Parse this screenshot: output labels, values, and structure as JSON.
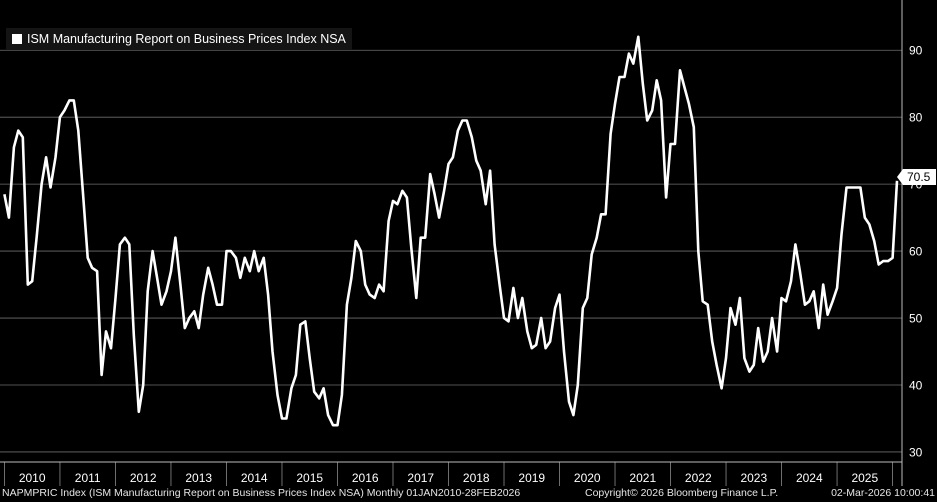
{
  "chart_data": {
    "type": "line",
    "title": "ISM Manufacturing Report on Business Prices Index NSA",
    "series_name": "ISM Manufacturing Report on Business Prices Index NSA",
    "xlabel": "",
    "ylabel": "",
    "ylim": [
      28.5,
      97.5
    ],
    "y_ticks": [
      30,
      40,
      50,
      60,
      70,
      80,
      90
    ],
    "x_tick_labels": [
      "2010",
      "2011",
      "2012",
      "2013",
      "2014",
      "2015",
      "2016",
      "2017",
      "2018",
      "2019",
      "2020",
      "2021",
      "2022",
      "2023",
      "2024",
      "2025"
    ],
    "x_start": 2010.0,
    "x_end": 2026.2,
    "last_value_label": "70.5",
    "line_color": "#ffffff",
    "grid": true,
    "points": [
      [
        2010.0,
        68.5
      ],
      [
        2010.08,
        65.0
      ],
      [
        2010.17,
        75.5
      ],
      [
        2010.25,
        78.0
      ],
      [
        2010.33,
        77.0
      ],
      [
        2010.42,
        55.0
      ],
      [
        2010.5,
        55.5
      ],
      [
        2010.58,
        62.0
      ],
      [
        2010.67,
        70.0
      ],
      [
        2010.75,
        74.0
      ],
      [
        2010.83,
        69.5
      ],
      [
        2010.92,
        74.0
      ],
      [
        2011.0,
        80.0
      ],
      [
        2011.08,
        81.0
      ],
      [
        2011.17,
        82.5
      ],
      [
        2011.25,
        82.5
      ],
      [
        2011.33,
        78.0
      ],
      [
        2011.42,
        68.0
      ],
      [
        2011.5,
        59.0
      ],
      [
        2011.58,
        57.5
      ],
      [
        2011.67,
        57.0
      ],
      [
        2011.75,
        41.5
      ],
      [
        2011.83,
        48.0
      ],
      [
        2011.92,
        45.5
      ],
      [
        2012.0,
        53.0
      ],
      [
        2012.08,
        61.0
      ],
      [
        2012.17,
        62.0
      ],
      [
        2012.25,
        61.0
      ],
      [
        2012.33,
        47.5
      ],
      [
        2012.42,
        36.0
      ],
      [
        2012.5,
        40.0
      ],
      [
        2012.58,
        54.0
      ],
      [
        2012.67,
        60.0
      ],
      [
        2012.75,
        56.0
      ],
      [
        2012.83,
        52.0
      ],
      [
        2012.92,
        54.0
      ],
      [
        2013.0,
        57.0
      ],
      [
        2013.08,
        62.0
      ],
      [
        2013.17,
        55.0
      ],
      [
        2013.25,
        48.5
      ],
      [
        2013.33,
        50.0
      ],
      [
        2013.42,
        51.0
      ],
      [
        2013.5,
        48.5
      ],
      [
        2013.58,
        53.5
      ],
      [
        2013.67,
        57.5
      ],
      [
        2013.75,
        55.0
      ],
      [
        2013.83,
        52.0
      ],
      [
        2013.92,
        52.0
      ],
      [
        2014.0,
        60.0
      ],
      [
        2014.08,
        60.0
      ],
      [
        2014.17,
        59.0
      ],
      [
        2014.25,
        56.0
      ],
      [
        2014.33,
        59.0
      ],
      [
        2014.42,
        57.0
      ],
      [
        2014.5,
        60.0
      ],
      [
        2014.58,
        57.0
      ],
      [
        2014.67,
        59.0
      ],
      [
        2014.75,
        53.5
      ],
      [
        2014.83,
        45.0
      ],
      [
        2014.92,
        38.5
      ],
      [
        2015.0,
        35.0
      ],
      [
        2015.08,
        35.0
      ],
      [
        2015.17,
        39.5
      ],
      [
        2015.25,
        41.5
      ],
      [
        2015.33,
        49.0
      ],
      [
        2015.42,
        49.5
      ],
      [
        2015.5,
        44.0
      ],
      [
        2015.58,
        39.0
      ],
      [
        2015.67,
        38.0
      ],
      [
        2015.75,
        39.5
      ],
      [
        2015.83,
        35.5
      ],
      [
        2015.92,
        34.0
      ],
      [
        2016.0,
        34.0
      ],
      [
        2016.08,
        38.5
      ],
      [
        2016.17,
        52.0
      ],
      [
        2016.25,
        56.0
      ],
      [
        2016.33,
        61.5
      ],
      [
        2016.42,
        60.0
      ],
      [
        2016.5,
        55.0
      ],
      [
        2016.58,
        53.5
      ],
      [
        2016.67,
        53.0
      ],
      [
        2016.75,
        55.0
      ],
      [
        2016.83,
        54.0
      ],
      [
        2016.92,
        64.5
      ],
      [
        2017.0,
        67.5
      ],
      [
        2017.08,
        67.0
      ],
      [
        2017.17,
        69.0
      ],
      [
        2017.25,
        68.0
      ],
      [
        2017.33,
        60.5
      ],
      [
        2017.42,
        53.0
      ],
      [
        2017.5,
        62.0
      ],
      [
        2017.58,
        62.0
      ],
      [
        2017.67,
        71.5
      ],
      [
        2017.75,
        68.5
      ],
      [
        2017.83,
        65.0
      ],
      [
        2017.92,
        69.0
      ],
      [
        2018.0,
        73.0
      ],
      [
        2018.08,
        74.0
      ],
      [
        2018.17,
        78.0
      ],
      [
        2018.25,
        79.5
      ],
      [
        2018.33,
        79.5
      ],
      [
        2018.42,
        77.0
      ],
      [
        2018.5,
        73.5
      ],
      [
        2018.58,
        72.0
      ],
      [
        2018.67,
        67.0
      ],
      [
        2018.75,
        72.0
      ],
      [
        2018.83,
        61.0
      ],
      [
        2018.92,
        55.0
      ],
      [
        2019.0,
        50.0
      ],
      [
        2019.08,
        49.5
      ],
      [
        2019.17,
        54.5
      ],
      [
        2019.25,
        50.0
      ],
      [
        2019.33,
        53.0
      ],
      [
        2019.42,
        48.0
      ],
      [
        2019.5,
        45.5
      ],
      [
        2019.58,
        46.0
      ],
      [
        2019.67,
        50.0
      ],
      [
        2019.75,
        45.5
      ],
      [
        2019.83,
        46.5
      ],
      [
        2019.92,
        51.5
      ],
      [
        2020.0,
        53.5
      ],
      [
        2020.08,
        45.0
      ],
      [
        2020.17,
        37.5
      ],
      [
        2020.25,
        35.5
      ],
      [
        2020.33,
        40.0
      ],
      [
        2020.42,
        51.5
      ],
      [
        2020.5,
        53.0
      ],
      [
        2020.58,
        59.5
      ],
      [
        2020.67,
        62.0
      ],
      [
        2020.75,
        65.5
      ],
      [
        2020.83,
        65.5
      ],
      [
        2020.92,
        77.5
      ],
      [
        2021.0,
        82.0
      ],
      [
        2021.08,
        86.0
      ],
      [
        2021.17,
        86.0
      ],
      [
        2021.25,
        89.5
      ],
      [
        2021.33,
        88.0
      ],
      [
        2021.42,
        92.0
      ],
      [
        2021.5,
        85.0
      ],
      [
        2021.58,
        79.5
      ],
      [
        2021.67,
        81.0
      ],
      [
        2021.75,
        85.5
      ],
      [
        2021.83,
        82.5
      ],
      [
        2021.92,
        68.0
      ],
      [
        2022.0,
        76.0
      ],
      [
        2022.08,
        76.0
      ],
      [
        2022.17,
        87.0
      ],
      [
        2022.25,
        84.5
      ],
      [
        2022.33,
        82.0
      ],
      [
        2022.42,
        78.5
      ],
      [
        2022.5,
        60.0
      ],
      [
        2022.58,
        52.5
      ],
      [
        2022.67,
        52.0
      ],
      [
        2022.75,
        46.5
      ],
      [
        2022.83,
        43.0
      ],
      [
        2022.92,
        39.5
      ],
      [
        2023.0,
        44.0
      ],
      [
        2023.08,
        51.5
      ],
      [
        2023.17,
        49.0
      ],
      [
        2023.25,
        53.0
      ],
      [
        2023.33,
        44.0
      ],
      [
        2023.42,
        42.0
      ],
      [
        2023.5,
        43.0
      ],
      [
        2023.58,
        48.5
      ],
      [
        2023.67,
        43.5
      ],
      [
        2023.75,
        45.0
      ],
      [
        2023.83,
        50.0
      ],
      [
        2023.92,
        45.0
      ],
      [
        2024.0,
        53.0
      ],
      [
        2024.08,
        52.5
      ],
      [
        2024.17,
        55.5
      ],
      [
        2024.25,
        61.0
      ],
      [
        2024.33,
        57.0
      ],
      [
        2024.42,
        52.0
      ],
      [
        2024.5,
        52.5
      ],
      [
        2024.58,
        54.0
      ],
      [
        2024.67,
        48.5
      ],
      [
        2024.75,
        55.0
      ],
      [
        2024.83,
        50.5
      ],
      [
        2024.92,
        52.5
      ],
      [
        2025.0,
        54.5
      ],
      [
        2025.08,
        62.5
      ],
      [
        2025.17,
        69.5
      ],
      [
        2025.25,
        69.5
      ],
      [
        2025.33,
        69.5
      ],
      [
        2025.42,
        69.5
      ],
      [
        2025.5,
        65.0
      ],
      [
        2025.58,
        64.0
      ],
      [
        2025.67,
        61.5
      ],
      [
        2025.75,
        58.0
      ],
      [
        2025.83,
        58.5
      ],
      [
        2025.92,
        58.5
      ],
      [
        2026.0,
        59.0
      ],
      [
        2026.08,
        70.5
      ]
    ]
  },
  "footer": {
    "source": "NAPMPRIC Index (ISM Manufacturing Report on Business Prices Index NSA) Monthly 01JAN2010-28FEB2026",
    "copyright": "Copyright© 2026 Bloomberg Finance L.P.",
    "timestamp": "02-Mar-2026 10:00:41"
  }
}
